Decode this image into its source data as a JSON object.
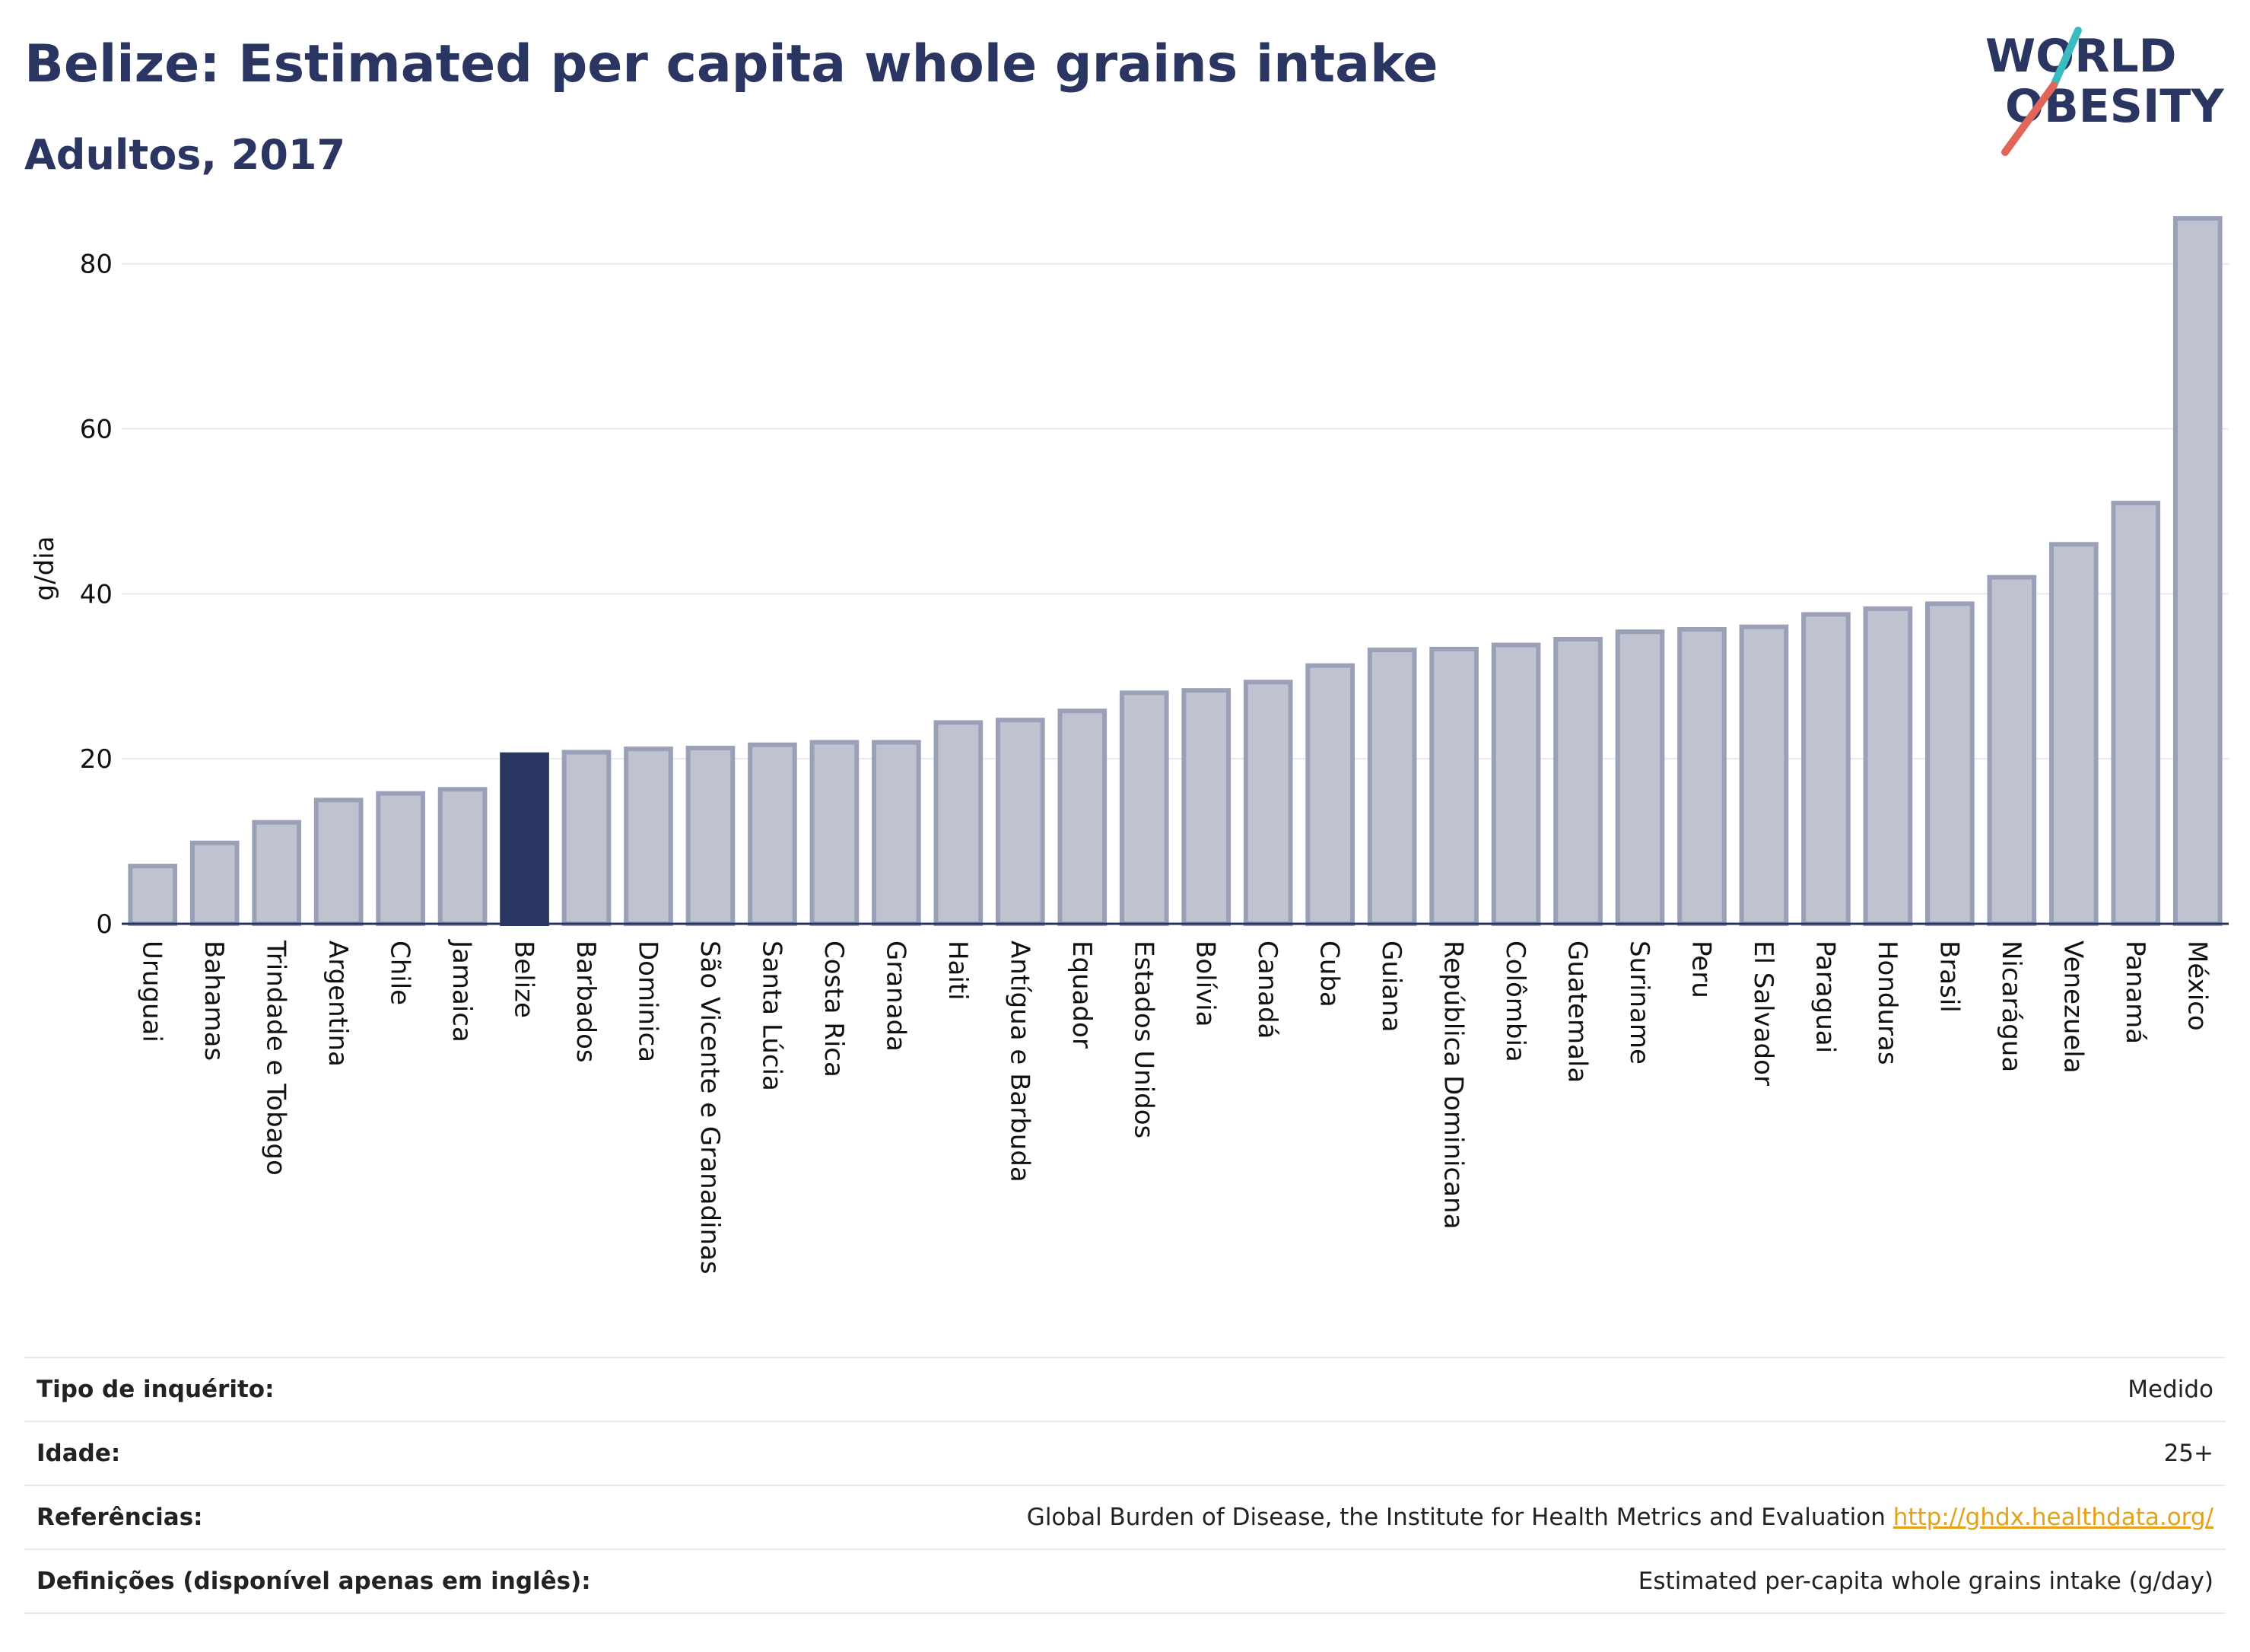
{
  "header": {
    "title": "Belize: Estimated per capita whole grains intake",
    "subtitle": "Adultos, 2017"
  },
  "logo": {
    "line1": "WORLD",
    "line2": "OBESITY"
  },
  "colors": {
    "highlight": "#2b3561",
    "bar": "#bfc3d0",
    "bar_border": "#9aa0b8",
    "text": "#2b3561",
    "link": "#e3a21a"
  },
  "chart_data": {
    "type": "bar",
    "ylabel": "g/dia",
    "ylim": [
      0,
      88
    ],
    "yticks": [
      0,
      20,
      40,
      60,
      80
    ],
    "grid": true,
    "highlight": "Belize",
    "categories": [
      "Uruguai",
      "Bahamas",
      "Trindade e Tobago",
      "Argentina",
      "Chile",
      "Jamaica",
      "Belize",
      "Barbados",
      "Dominica",
      "São Vicente e Granadinas",
      "Santa Lúcia",
      "Costa Rica",
      "Granada",
      "Haiti",
      "Antígua e Barbuda",
      "Equador",
      "Estados Unidos",
      "Bolívia",
      "Canadá",
      "Cuba",
      "Guiana",
      "República Dominicana",
      "Colômbia",
      "Guatemala",
      "Suriname",
      "Peru",
      "El Salvador",
      "Paraguai",
      "Honduras",
      "Brasil",
      "Nicarágua",
      "Venezuela",
      "Panamá",
      "México"
    ],
    "values": [
      7,
      9.8,
      12.3,
      15,
      15.8,
      16.3,
      20.5,
      20.8,
      21.2,
      21.3,
      21.7,
      22,
      22,
      24.4,
      24.7,
      25.8,
      28,
      28.3,
      29.3,
      31.3,
      33.2,
      33.3,
      33.8,
      34.5,
      35.4,
      35.7,
      36,
      37.5,
      38.2,
      38.8,
      42,
      46,
      51,
      85.5
    ]
  },
  "meta": {
    "survey_label": "Tipo de inquérito:",
    "survey_value": "Medido",
    "age_label": "Idade:",
    "age_value": "25+",
    "ref_label": "Referências:",
    "ref_value": "Global Burden of Disease, the Institute for Health Metrics and Evaluation",
    "ref_link": "http://ghdx.healthdata.org/",
    "def_label": "Definições (disponível apenas em inglês):",
    "def_value": "Estimated per-capita whole grains intake (g/day)"
  }
}
